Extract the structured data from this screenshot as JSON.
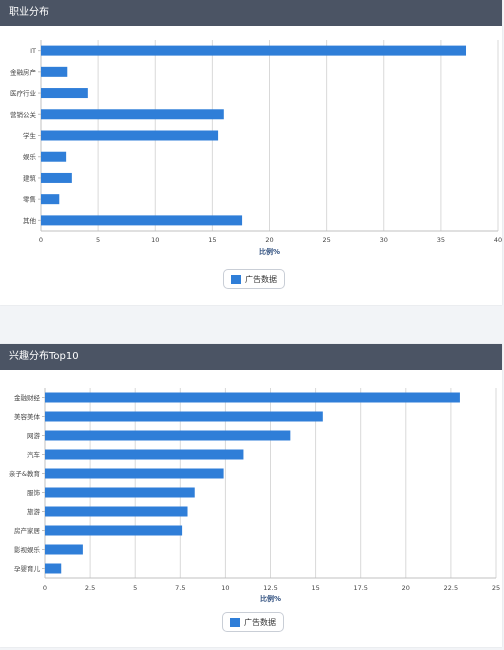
{
  "panels": [
    {
      "title": "职业分布"
    },
    {
      "title": "兴趣分布Top10"
    }
  ],
  "chart_data": [
    {
      "type": "bar",
      "orientation": "horizontal",
      "categories": [
        "IT",
        "金融房产",
        "医疗行业",
        "营销公关",
        "学生",
        "娱乐",
        "建筑",
        "零售",
        "其他"
      ],
      "series": [
        {
          "name": "广告数据",
          "values": [
            37.2,
            2.3,
            4.1,
            16.0,
            15.5,
            2.2,
            2.7,
            1.6,
            17.6
          ]
        }
      ],
      "xlabel": "比例%",
      "xlim": [
        0,
        40
      ],
      "xticks": [
        0,
        5,
        10,
        15,
        20,
        25,
        30,
        35,
        40
      ],
      "xtick_labels": [
        "0",
        "5",
        "10",
        "15",
        "20",
        "25",
        "30",
        "35",
        "40"
      ],
      "grid": true,
      "legend_position": "bottom-center",
      "color": "#2f7ed8"
    },
    {
      "type": "bar",
      "orientation": "horizontal",
      "categories": [
        "金融财经",
        "美容美体",
        "网游",
        "汽车",
        "亲子&教育",
        "服饰",
        "旅游",
        "房产家居",
        "影视娱乐",
        "孕婴育儿"
      ],
      "series": [
        {
          "name": "广告数据",
          "values": [
            23.0,
            15.4,
            13.6,
            11.0,
            9.9,
            8.3,
            7.9,
            7.6,
            2.1,
            0.9
          ]
        }
      ],
      "xlabel": "比例%",
      "xlim": [
        0,
        25
      ],
      "xticks": [
        0,
        2.5,
        5,
        7.5,
        10,
        12.5,
        15,
        17.5,
        20,
        22.5,
        25
      ],
      "xtick_labels": [
        "0",
        "2.5",
        "5",
        "7.5",
        "10",
        "12.5",
        "15",
        "17.5",
        "20",
        "22.5",
        "25"
      ],
      "grid": true,
      "legend_position": "bottom-center",
      "color": "#2f7ed8"
    }
  ]
}
